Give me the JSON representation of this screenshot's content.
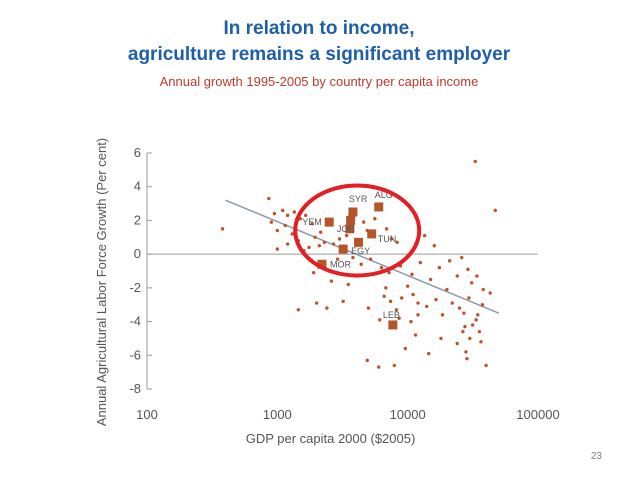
{
  "slide": {
    "title_line1": "In relation to income,",
    "title_line2": "agriculture remains a significant employer",
    "subtitle": "Annual growth 1995-2005 by country per capita income",
    "page_number": "23"
  },
  "colors": {
    "title": "#1f5fa8",
    "subtitle": "#c0392b",
    "points": "#c0522b",
    "highlight_points": "#b5552a",
    "trend_line": "#8e9aaa",
    "circle": "#e31e24",
    "axis": "#9a9a9a"
  },
  "chart_data": {
    "type": "scatter",
    "title": "",
    "xlabel": "GDP per capita 2000 ($2005)",
    "ylabel": "Annual Agricultural Labor Force Growth (Per cent)",
    "x_scale": "log",
    "xlim": [
      100,
      100000
    ],
    "ylim": [
      -8,
      6
    ],
    "x_ticks": [
      {
        "value": 100,
        "label": "100"
      },
      {
        "value": 1000,
        "label": "1000"
      },
      {
        "value": 10000,
        "label": "10000"
      },
      {
        "value": 100000,
        "label": "100000"
      }
    ],
    "y_ticks": [
      {
        "value": 6,
        "label": "6"
      },
      {
        "value": 4,
        "label": "4"
      },
      {
        "value": 2,
        "label": "2"
      },
      {
        "value": 0,
        "label": "0"
      },
      {
        "value": -2,
        "label": "-2"
      },
      {
        "value": -4,
        "label": "-4"
      },
      {
        "value": -6,
        "label": "-6"
      },
      {
        "value": -8,
        "label": "-8"
      }
    ],
    "zero_line": true,
    "grid": false,
    "trend_line": {
      "start": [
        400,
        3.2
      ],
      "end": [
        50000,
        -3.5
      ]
    },
    "highlighted": [
      {
        "label": "ALG",
        "x": 6000,
        "y": 2.8
      },
      {
        "label": "SYR",
        "x": 3800,
        "y": 2.5
      },
      {
        "label": "",
        "x": 3650,
        "y": 2.0
      },
      {
        "label": "YEM",
        "x": 2500,
        "y": 1.9
      },
      {
        "label": "JOR",
        "x": 3600,
        "y": 1.5
      },
      {
        "label": "TUN",
        "x": 5300,
        "y": 1.2
      },
      {
        "label": "",
        "x": 4200,
        "y": 0.7
      },
      {
        "label": "EGY",
        "x": 3200,
        "y": 0.3
      },
      {
        "label": "MOR",
        "x": 2200,
        "y": -0.6
      },
      {
        "label": "LEB",
        "x": 7700,
        "y": -4.2
      }
    ],
    "points": [
      [
        380,
        1.5
      ],
      [
        860,
        3.3
      ],
      [
        950,
        2.4
      ],
      [
        1100,
        2.6
      ],
      [
        1200,
        2.3
      ],
      [
        1350,
        2.5
      ],
      [
        1500,
        2.1
      ],
      [
        1650,
        2.3
      ],
      [
        1850,
        1.8
      ],
      [
        1950,
        1.0
      ],
      [
        2150,
        1.3
      ],
      [
        2300,
        0.7
      ],
      [
        900,
        1.9
      ],
      [
        1000,
        1.4
      ],
      [
        1150,
        1.7
      ],
      [
        1300,
        1.2
      ],
      [
        1450,
        0.8
      ],
      [
        1750,
        0.4
      ],
      [
        1000,
        0.3
      ],
      [
        1200,
        0.6
      ],
      [
        1600,
        0.2
      ],
      [
        2100,
        0.5
      ],
      [
        2700,
        0.6
      ],
      [
        3000,
        0.9
      ],
      [
        3400,
        1.1
      ],
      [
        4600,
        1.9
      ],
      [
        4900,
        1.4
      ],
      [
        5600,
        2.1
      ],
      [
        6900,
        1.5
      ],
      [
        7500,
        0.9
      ],
      [
        8300,
        0.7
      ],
      [
        11500,
        0.6
      ],
      [
        13500,
        1.1
      ],
      [
        16000,
        0.5
      ],
      [
        2900,
        -0.3
      ],
      [
        3800,
        -0.2
      ],
      [
        4400,
        -0.6
      ],
      [
        5200,
        -0.3
      ],
      [
        6300,
        -0.8
      ],
      [
        7200,
        -1.1
      ],
      [
        8800,
        -0.7
      ],
      [
        10800,
        -1.2
      ],
      [
        12500,
        -0.5
      ],
      [
        15000,
        -1.5
      ],
      [
        17500,
        -0.8
      ],
      [
        21000,
        -0.4
      ],
      [
        24000,
        -1.3
      ],
      [
        26000,
        -0.2
      ],
      [
        29000,
        -0.9
      ],
      [
        31000,
        -1.7
      ],
      [
        34000,
        -1.3
      ],
      [
        38000,
        -2.1
      ],
      [
        43000,
        -2.3
      ],
      [
        47000,
        2.6
      ],
      [
        33000,
        5.5
      ],
      [
        2000,
        -2.9
      ],
      [
        3200,
        -2.8
      ],
      [
        5000,
        -3.2
      ],
      [
        6100,
        -3.9
      ],
      [
        6600,
        -2.5
      ],
      [
        7400,
        -2.8
      ],
      [
        8200,
        -3.3
      ],
      [
        9000,
        -2.6
      ],
      [
        10000,
        -1.9
      ],
      [
        11000,
        -2.4
      ],
      [
        12000,
        -2.9
      ],
      [
        14000,
        -3.1
      ],
      [
        16500,
        -2.7
      ],
      [
        18500,
        -3.6
      ],
      [
        20000,
        -2.1
      ],
      [
        22000,
        -2.9
      ],
      [
        25000,
        -3.2
      ],
      [
        27000,
        -3.5
      ],
      [
        29500,
        -2.6
      ],
      [
        31500,
        -4.2
      ],
      [
        33500,
        -3.9
      ],
      [
        35500,
        -4.6
      ],
      [
        27500,
        -4.3
      ],
      [
        30000,
        -5.0
      ],
      [
        24000,
        -5.3
      ],
      [
        28000,
        -5.8
      ],
      [
        36500,
        -5.2
      ],
      [
        40000,
        -6.6
      ],
      [
        18000,
        -5.0
      ],
      [
        11500,
        -4.8
      ],
      [
        9600,
        -5.6
      ],
      [
        4900,
        -6.3
      ],
      [
        6000,
        -6.7
      ],
      [
        7900,
        -6.6
      ],
      [
        14500,
        -5.9
      ],
      [
        26500,
        -4.6
      ],
      [
        34500,
        -3.6
      ],
      [
        4100,
        -1.3
      ],
      [
        6800,
        -2.0
      ],
      [
        2400,
        -3.2
      ],
      [
        1450,
        -3.3
      ],
      [
        1900,
        -1.1
      ],
      [
        2600,
        -1.6
      ],
      [
        8600,
        -3.8
      ],
      [
        10600,
        -4.0
      ],
      [
        3500,
        -1.8
      ],
      [
        12000,
        -3.6
      ],
      [
        37500,
        -3.0
      ],
      [
        28500,
        -6.2
      ]
    ],
    "circle": {
      "cx": 4100,
      "cy": 1.4,
      "rx": 62,
      "ry": 45
    }
  }
}
